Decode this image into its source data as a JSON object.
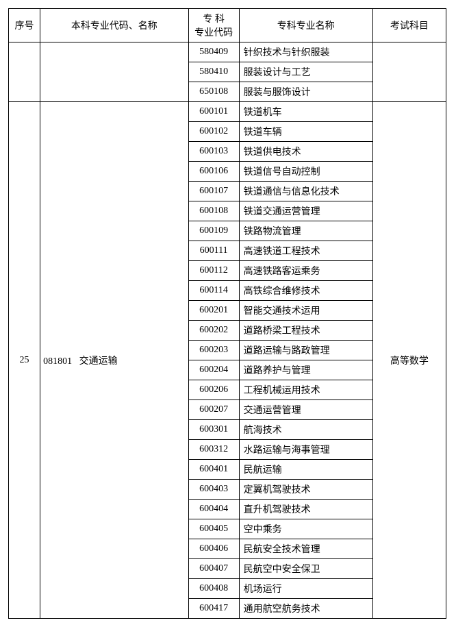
{
  "headers": {
    "seq": "序号",
    "major": "本科专业代码、名称",
    "code": "专 科\n专业代码",
    "name": "专科专业名称",
    "exam": "考试科目"
  },
  "group1": {
    "rows": [
      {
        "code": "580409",
        "name": "针织技术与针织服装"
      },
      {
        "code": "580410",
        "name": "服装设计与工艺"
      },
      {
        "code": "650108",
        "name": "服装与服饰设计"
      }
    ]
  },
  "group2": {
    "seq": "25",
    "major_code": "081801",
    "major_name": "交通运输",
    "exam": "高等数学",
    "rows": [
      {
        "code": "600101",
        "name": "铁道机车"
      },
      {
        "code": "600102",
        "name": "铁道车辆"
      },
      {
        "code": "600103",
        "name": "铁道供电技术"
      },
      {
        "code": "600106",
        "name": "铁道信号自动控制"
      },
      {
        "code": "600107",
        "name": "铁道通信与信息化技术"
      },
      {
        "code": "600108",
        "name": "铁道交通运营管理"
      },
      {
        "code": "600109",
        "name": "铁路物流管理"
      },
      {
        "code": "600111",
        "name": "高速铁道工程技术"
      },
      {
        "code": "600112",
        "name": "高速铁路客运乘务"
      },
      {
        "code": "600114",
        "name": "高铁综合维修技术"
      },
      {
        "code": "600201",
        "name": "智能交通技术运用"
      },
      {
        "code": "600202",
        "name": "道路桥梁工程技术"
      },
      {
        "code": "600203",
        "name": "道路运输与路政管理"
      },
      {
        "code": "600204",
        "name": "道路养护与管理"
      },
      {
        "code": "600206",
        "name": "工程机械运用技术"
      },
      {
        "code": "600207",
        "name": "交通运营管理"
      },
      {
        "code": "600301",
        "name": "航海技术"
      },
      {
        "code": "600312",
        "name": "水路运输与海事管理"
      },
      {
        "code": "600401",
        "name": "民航运输"
      },
      {
        "code": "600403",
        "name": "定翼机驾驶技术"
      },
      {
        "code": "600404",
        "name": "直升机驾驶技术"
      },
      {
        "code": "600405",
        "name": "空中乘务"
      },
      {
        "code": "600406",
        "name": "民航安全技术管理"
      },
      {
        "code": "600407",
        "name": "民航空中安全保卫"
      },
      {
        "code": "600408",
        "name": "机场运行"
      },
      {
        "code": "600417",
        "name": "通用航空航务技术"
      }
    ]
  }
}
